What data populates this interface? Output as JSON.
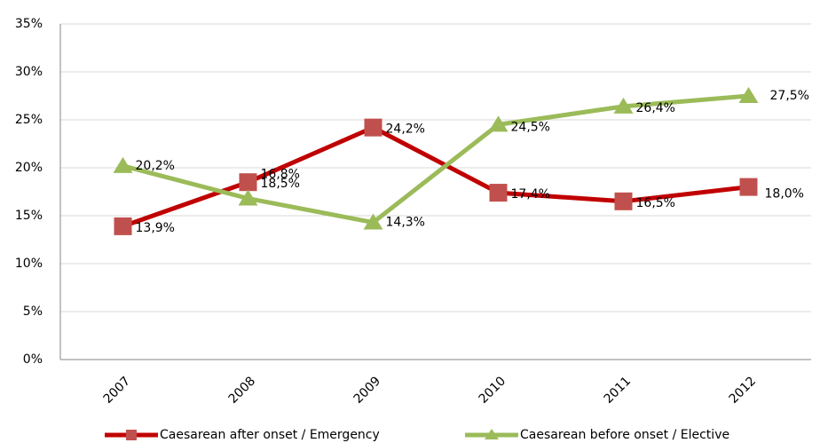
{
  "chart_data": {
    "type": "line",
    "categories": [
      "2007",
      "2008",
      "2009",
      "2010",
      "2011",
      "2012"
    ],
    "series": [
      {
        "name": "Caesarean after onset / Emergency",
        "color": "#c00000",
        "marker_color": "#c0504d",
        "marker": "square",
        "values": [
          13.9,
          18.5,
          24.2,
          17.4,
          16.5,
          18.0
        ],
        "value_labels": [
          "13,9%",
          "18,5%",
          "24,2%",
          "17,4%",
          "16,5%",
          "18,0%"
        ]
      },
      {
        "name": "Caesarean before onset / Elective",
        "color": "#9bbb59",
        "marker_color": "#9bbb59",
        "marker": "triangle",
        "values": [
          20.2,
          16.8,
          14.3,
          24.5,
          26.4,
          27.5
        ],
        "value_labels": [
          "20,2%",
          "16,8%",
          "14,3%",
          "24,5%",
          "26,4%",
          "27,5%"
        ]
      }
    ],
    "ylim": [
      0,
      35
    ],
    "yticks": [
      {
        "value": 0,
        "label": "0%"
      },
      {
        "value": 5,
        "label": "5%"
      },
      {
        "value": 10,
        "label": "10%"
      },
      {
        "value": 15,
        "label": "15%"
      },
      {
        "value": 20,
        "label": "20%"
      },
      {
        "value": 25,
        "label": "25%"
      },
      {
        "value": 30,
        "label": "30%"
      },
      {
        "value": 35,
        "label": "35%"
      }
    ],
    "grid": true,
    "legend": "bottom"
  }
}
